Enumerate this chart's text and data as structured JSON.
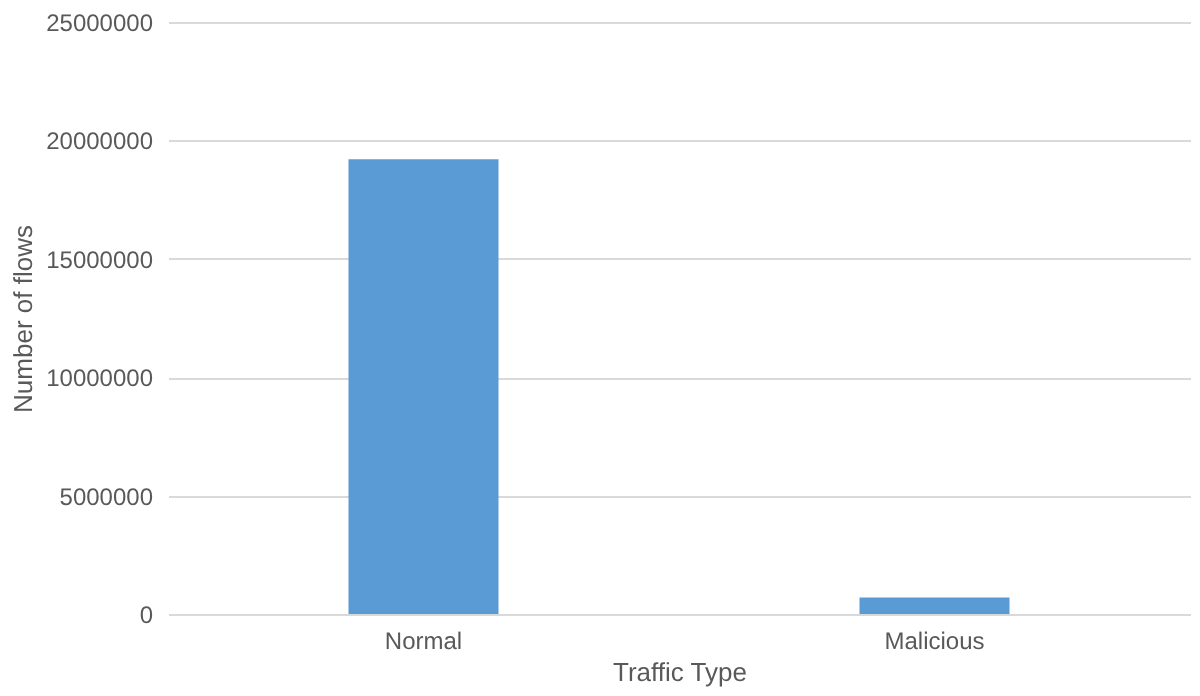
{
  "chart_data": {
    "type": "bar",
    "categories": [
      "Normal",
      "Malicious"
    ],
    "values": [
      19200000,
      700000
    ],
    "color": "#5b9bd5",
    "xlabel": "Traffic Type",
    "ylabel": "Number of flows",
    "ylim": [
      0,
      25000000
    ],
    "yticks": [
      0,
      5000000,
      10000000,
      15000000,
      20000000,
      25000000
    ],
    "grid": "y"
  }
}
